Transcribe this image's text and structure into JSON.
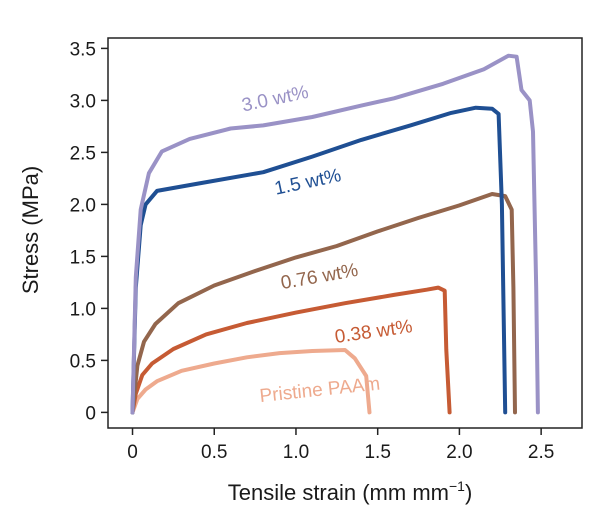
{
  "chart_data": {
    "type": "line",
    "title": "",
    "xlabel": "Tensile strain (mm mm",
    "xlabel_sup": "−1",
    "xlabel_close": ")",
    "ylabel": "Stress (MPa)",
    "xlim": [
      -0.15,
      2.75
    ],
    "ylim": [
      -0.15,
      3.6
    ],
    "grid": false,
    "x_ticks": [
      0,
      0.5,
      1.0,
      1.5,
      2.0,
      2.5
    ],
    "x_tick_labels": [
      "0",
      "0.5",
      "1.0",
      "1.5",
      "2.0",
      "2.5"
    ],
    "y_ticks": [
      0,
      0.5,
      1.0,
      1.5,
      2.0,
      2.5,
      3.0,
      3.5
    ],
    "y_tick_labels": [
      "0",
      "0.5",
      "1.0",
      "1.5",
      "2.0",
      "2.5",
      "3.0",
      "3.5"
    ],
    "series": [
      {
        "name": "Pristine PAAm",
        "color": "#eeaa8e",
        "label_pos": [
          1.15,
          0.16
        ],
        "label_rotate": -6,
        "points": [
          [
            0,
            0
          ],
          [
            0.03,
            0.13
          ],
          [
            0.08,
            0.22
          ],
          [
            0.15,
            0.3
          ],
          [
            0.3,
            0.4
          ],
          [
            0.5,
            0.47
          ],
          [
            0.7,
            0.53
          ],
          [
            0.9,
            0.57
          ],
          [
            1.1,
            0.59
          ],
          [
            1.3,
            0.6
          ],
          [
            1.36,
            0.52
          ],
          [
            1.43,
            0.35
          ],
          [
            1.45,
            0.0
          ]
        ]
      },
      {
        "name": "0.38 wt%",
        "color": "#c65b34",
        "label_pos": [
          1.48,
          0.72
        ],
        "label_rotate": -8,
        "points": [
          [
            0,
            0
          ],
          [
            0.02,
            0.18
          ],
          [
            0.06,
            0.36
          ],
          [
            0.12,
            0.47
          ],
          [
            0.25,
            0.61
          ],
          [
            0.45,
            0.75
          ],
          [
            0.7,
            0.86
          ],
          [
            1.0,
            0.96
          ],
          [
            1.3,
            1.05
          ],
          [
            1.6,
            1.13
          ],
          [
            1.8,
            1.18
          ],
          [
            1.87,
            1.2
          ],
          [
            1.91,
            1.17
          ],
          [
            1.92,
            0.6
          ],
          [
            1.94,
            0.0
          ]
        ]
      },
      {
        "name": "0.76 wt%",
        "color": "#93664d",
        "label_pos": [
          1.15,
          1.25
        ],
        "label_rotate": -10,
        "points": [
          [
            0,
            0
          ],
          [
            0.03,
            0.45
          ],
          [
            0.07,
            0.68
          ],
          [
            0.14,
            0.85
          ],
          [
            0.28,
            1.05
          ],
          [
            0.5,
            1.22
          ],
          [
            0.75,
            1.36
          ],
          [
            1.0,
            1.49
          ],
          [
            1.25,
            1.6
          ],
          [
            1.5,
            1.74
          ],
          [
            1.75,
            1.87
          ],
          [
            2.0,
            1.99
          ],
          [
            2.2,
            2.1
          ],
          [
            2.28,
            2.08
          ],
          [
            2.32,
            1.95
          ],
          [
            2.33,
            1.2
          ],
          [
            2.34,
            0.0
          ]
        ]
      },
      {
        "name": "1.5 wt%",
        "color": "#1f4f93",
        "label_pos": [
          1.08,
          2.16
        ],
        "label_rotate": -12,
        "points": [
          [
            0,
            0
          ],
          [
            0.02,
            1.2
          ],
          [
            0.05,
            1.8
          ],
          [
            0.08,
            2.0
          ],
          [
            0.15,
            2.13
          ],
          [
            0.4,
            2.2
          ],
          [
            0.8,
            2.31
          ],
          [
            1.1,
            2.46
          ],
          [
            1.4,
            2.62
          ],
          [
            1.7,
            2.76
          ],
          [
            1.95,
            2.88
          ],
          [
            2.1,
            2.93
          ],
          [
            2.2,
            2.92
          ],
          [
            2.24,
            2.87
          ],
          [
            2.26,
            2.0
          ],
          [
            2.28,
            0.0
          ]
        ]
      },
      {
        "name": "3.0 wt%",
        "color": "#9a92c6",
        "label_pos": [
          0.88,
          2.96
        ],
        "label_rotate": -12,
        "points": [
          [
            0,
            0
          ],
          [
            0.02,
            1.3
          ],
          [
            0.05,
            1.95
          ],
          [
            0.1,
            2.3
          ],
          [
            0.18,
            2.51
          ],
          [
            0.35,
            2.63
          ],
          [
            0.6,
            2.73
          ],
          [
            0.8,
            2.76
          ],
          [
            1.1,
            2.84
          ],
          [
            1.4,
            2.95
          ],
          [
            1.6,
            3.02
          ],
          [
            1.9,
            3.16
          ],
          [
            2.15,
            3.3
          ],
          [
            2.3,
            3.43
          ],
          [
            2.35,
            3.42
          ],
          [
            2.38,
            3.1
          ],
          [
            2.43,
            3.0
          ],
          [
            2.45,
            2.7
          ],
          [
            2.47,
            1.2
          ],
          [
            2.48,
            0.0
          ]
        ]
      }
    ]
  }
}
